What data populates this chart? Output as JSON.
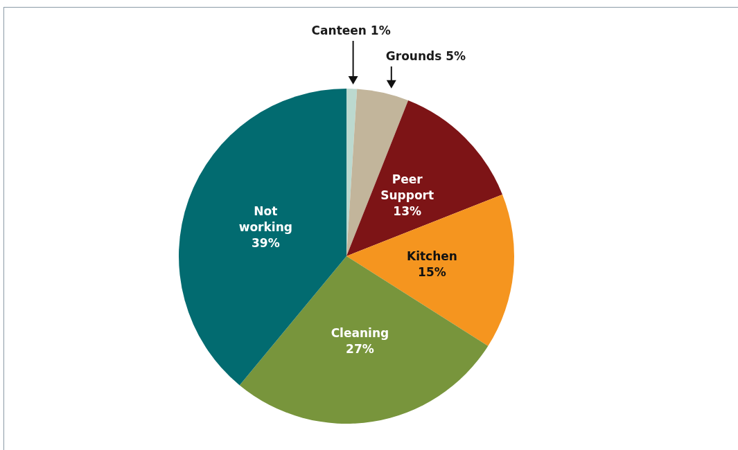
{
  "chart_data": {
    "type": "pie",
    "categories": [
      "Canteen",
      "Grounds",
      "Peer Support",
      "Kitchen",
      "Cleaning",
      "Not working"
    ],
    "values": [
      1,
      5,
      13,
      15,
      27,
      39
    ],
    "colors": [
      "#bcd9cf",
      "#c2b59b",
      "#7d1416",
      "#f5951f",
      "#78953c",
      "#026b70"
    ],
    "value_labels": [
      "1%",
      "5%",
      "13%",
      "15%",
      "27%",
      "39%"
    ],
    "legend": false
  }
}
